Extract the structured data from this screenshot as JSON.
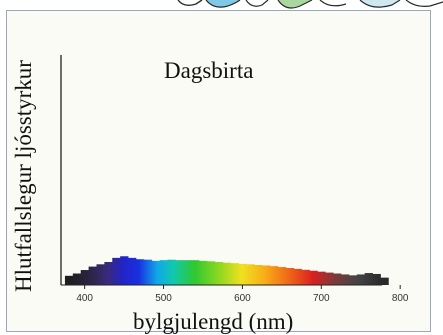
{
  "chart_data": {
    "type": "bar",
    "title": "Dagsbirta",
    "xlabel": "bylgjulengd (nm)",
    "ylabel": "Hlutfallslegur ljósstyrkur",
    "xlim": [
      370,
      815
    ],
    "ylim": [
      0,
      1
    ],
    "x_ticks": [
      "400",
      "500",
      "600",
      "700",
      "800"
    ],
    "grid": false,
    "series": [
      {
        "x": [
          380,
          390,
          400,
          410,
          420,
          430,
          440,
          450,
          460,
          470,
          480,
          490,
          500,
          510,
          520,
          530,
          540,
          550,
          560,
          570,
          580,
          590,
          600,
          610,
          620,
          630,
          640,
          650,
          660,
          670,
          680,
          690,
          700,
          710,
          720,
          730,
          740,
          750,
          760,
          770,
          780
        ],
        "values": [
          0.04,
          0.05,
          0.065,
          0.08,
          0.09,
          0.1,
          0.118,
          0.125,
          0.118,
          0.112,
          0.11,
          0.105,
          0.108,
          0.11,
          0.108,
          0.108,
          0.108,
          0.105,
          0.103,
          0.1,
          0.097,
          0.095,
          0.092,
          0.09,
          0.087,
          0.085,
          0.082,
          0.078,
          0.074,
          0.07,
          0.066,
          0.062,
          0.058,
          0.054,
          0.05,
          0.046,
          0.042,
          0.046,
          0.052,
          0.048,
          0.032
        ]
      }
    ]
  },
  "colors": {
    "frame_border": "#9aa8bd",
    "axis": "#222222",
    "spectrum_violet": "#3a2a7a",
    "spectrum_blue": "#1830e0",
    "spectrum_green": "#30c830",
    "spectrum_yellow": "#f0e020",
    "spectrum_red": "#d82020"
  },
  "decoration": {
    "top_strip": "cartoon-illustration"
  }
}
